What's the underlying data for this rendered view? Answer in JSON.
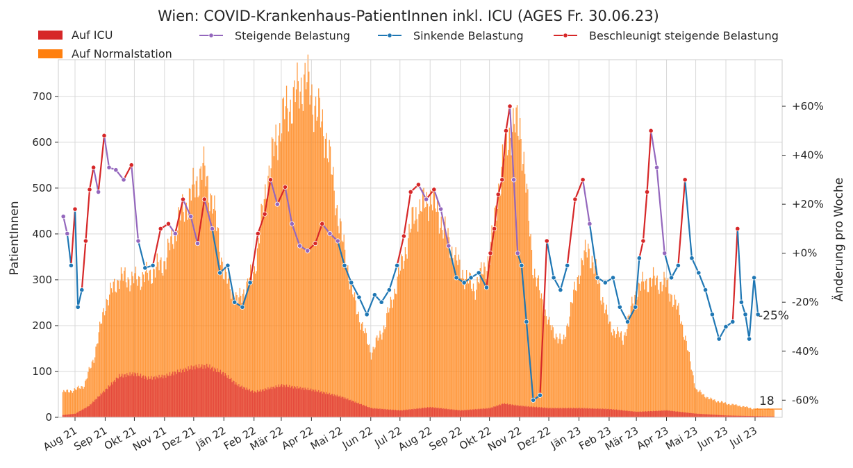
{
  "chart_data": {
    "type": "bar",
    "title": "Wien: COVID-Krankenhaus-PatientInnen inkl. ICU (AGES Fr. 30.06.23)",
    "ylabel": "PatientInnen",
    "y2label": "Änderung pro Woche",
    "ylim": [
      0,
      780
    ],
    "y2lim": [
      -67,
      79
    ],
    "yticks": [
      0,
      100,
      200,
      300,
      400,
      500,
      600,
      700
    ],
    "y2ticks": [
      {
        "value": 60,
        "label": "+60%"
      },
      {
        "value": 40,
        "label": "+40%"
      },
      {
        "value": 20,
        "label": "+20%"
      },
      {
        "value": 0,
        "label": "+0%"
      },
      {
        "value": -20,
        "label": "-20%"
      },
      {
        "value": -40,
        "label": "-40%"
      },
      {
        "value": -60,
        "label": "-60%"
      }
    ],
    "xticks": [
      "Aug 21",
      "Sep 21",
      "Okt 21",
      "Nov 21",
      "Dez 21",
      "Jän 22",
      "Feb 22",
      "Mär 22",
      "Apr 22",
      "Mai 22",
      "Jun 22",
      "Jul 22",
      "Aug 22",
      "Sep 22",
      "Okt 22",
      "Nov 22",
      "Dez 22",
      "Jän 23",
      "Feb 23",
      "Mär 23",
      "Apr 23",
      "Mai 23",
      "Jun 23",
      "Jul 23"
    ],
    "grid": true,
    "legend_position": "top",
    "legend": {
      "bars": [
        {
          "name": "Auf ICU",
          "color": "#d62728"
        },
        {
          "name": "Auf Normalstation",
          "color": "#ff7f0e"
        }
      ],
      "lines": [
        {
          "name": "Steigende Belastung",
          "color": "#9467bd"
        },
        {
          "name": "Sinkende Belastung",
          "color": "#1f77b4"
        },
        {
          "name": "Beschleunigt steigende Belastung",
          "color": "#d62728"
        }
      ]
    },
    "annotations": [
      {
        "text": "-25%",
        "axis": "y2",
        "value": -25
      },
      {
        "text": "18",
        "axis": "y",
        "value": 18
      }
    ],
    "total_series": {
      "name": "PatientInnen gesamt",
      "x": [
        "2021-07-20",
        "2021-08-01",
        "2021-08-10",
        "2021-08-20",
        "2021-09-01",
        "2021-09-15",
        "2021-10-01",
        "2021-10-15",
        "2021-11-01",
        "2021-11-15",
        "2021-12-01",
        "2021-12-10",
        "2021-12-20",
        "2022-01-01",
        "2022-01-15",
        "2022-02-01",
        "2022-02-15",
        "2022-03-01",
        "2022-03-15",
        "2022-03-25",
        "2022-04-01",
        "2022-04-15",
        "2022-05-01",
        "2022-05-15",
        "2022-06-01",
        "2022-06-15",
        "2022-07-01",
        "2022-07-15",
        "2022-08-01",
        "2022-08-10",
        "2022-08-20",
        "2022-09-01",
        "2022-09-15",
        "2022-10-01",
        "2022-10-10",
        "2022-10-20",
        "2022-11-01",
        "2022-11-15",
        "2022-12-01",
        "2022-12-15",
        "2023-01-01",
        "2023-01-10",
        "2023-01-20",
        "2023-02-01",
        "2023-02-15",
        "2023-03-01",
        "2023-03-15",
        "2023-04-01",
        "2023-04-15",
        "2023-05-01",
        "2023-05-15",
        "2023-06-01",
        "2023-06-15",
        "2023-07-01",
        "2023-07-15"
      ],
      "values": [
        55,
        60,
        70,
        130,
        250,
        305,
        300,
        310,
        340,
        430,
        500,
        545,
        470,
        310,
        250,
        320,
        530,
        650,
        700,
        740,
        700,
        620,
        400,
        250,
        140,
        200,
        320,
        440,
        480,
        440,
        380,
        320,
        280,
        350,
        500,
        620,
        640,
        320,
        200,
        160,
        320,
        370,
        300,
        200,
        170,
        280,
        300,
        290,
        220,
        60,
        40,
        30,
        25,
        18,
        18
      ]
    },
    "icu_series": {
      "name": "Auf ICU",
      "x": [
        "2021-07-20",
        "2021-08-01",
        "2021-08-15",
        "2021-09-01",
        "2021-09-15",
        "2021-10-01",
        "2021-10-15",
        "2021-11-01",
        "2021-11-15",
        "2021-12-01",
        "2021-12-15",
        "2022-01-01",
        "2022-01-15",
        "2022-02-01",
        "2022-03-01",
        "2022-04-01",
        "2022-05-01",
        "2022-06-01",
        "2022-07-01",
        "2022-08-01",
        "2022-09-01",
        "2022-10-01",
        "2022-10-15",
        "2022-11-01",
        "2022-12-01",
        "2023-01-01",
        "2023-02-01",
        "2023-03-01",
        "2023-04-01",
        "2023-05-01",
        "2023-06-01",
        "2023-07-15"
      ],
      "values": [
        5,
        8,
        25,
        60,
        90,
        95,
        85,
        90,
        100,
        110,
        112,
        95,
        70,
        55,
        70,
        60,
        45,
        20,
        15,
        22,
        15,
        20,
        30,
        25,
        20,
        20,
        18,
        12,
        15,
        8,
        4,
        2
      ]
    },
    "change_series": {
      "name": "Änderung pro Woche",
      "x": [
        "2021-07-20",
        "2021-07-24",
        "2021-07-28",
        "2021-08-01",
        "2021-08-04",
        "2021-08-08",
        "2021-08-12",
        "2021-08-16",
        "2021-08-20",
        "2021-08-25",
        "2021-08-31",
        "2021-09-05",
        "2021-09-12",
        "2021-09-20",
        "2021-09-28",
        "2021-10-05",
        "2021-10-12",
        "2021-10-20",
        "2021-10-28",
        "2021-11-05",
        "2021-11-12",
        "2021-11-20",
        "2021-11-28",
        "2021-12-05",
        "2021-12-12",
        "2021-12-20",
        "2021-12-28",
        "2022-01-05",
        "2022-01-12",
        "2022-01-20",
        "2022-01-28",
        "2022-02-05",
        "2022-02-12",
        "2022-02-18",
        "2022-02-25",
        "2022-03-05",
        "2022-03-12",
        "2022-03-20",
        "2022-03-28",
        "2022-04-05",
        "2022-04-12",
        "2022-04-20",
        "2022-04-28",
        "2022-05-05",
        "2022-05-12",
        "2022-05-20",
        "2022-05-28",
        "2022-06-05",
        "2022-06-12",
        "2022-06-20",
        "2022-06-28",
        "2022-07-05",
        "2022-07-12",
        "2022-07-20",
        "2022-07-28",
        "2022-08-05",
        "2022-08-12",
        "2022-08-20",
        "2022-08-28",
        "2022-09-05",
        "2022-09-12",
        "2022-09-20",
        "2022-09-28",
        "2022-10-02",
        "2022-10-06",
        "2022-10-10",
        "2022-10-14",
        "2022-10-18",
        "2022-10-22",
        "2022-10-26",
        "2022-10-30",
        "2022-11-03",
        "2022-11-08",
        "2022-11-15",
        "2022-11-22",
        "2022-11-29",
        "2022-12-06",
        "2022-12-13",
        "2022-12-20",
        "2022-12-28",
        "2023-01-05",
        "2023-01-12",
        "2023-01-20",
        "2023-01-28",
        "2023-02-05",
        "2023-02-12",
        "2023-02-20",
        "2023-02-28",
        "2023-03-04",
        "2023-03-08",
        "2023-03-12",
        "2023-03-16",
        "2023-03-22",
        "2023-03-30",
        "2023-04-06",
        "2023-04-13",
        "2023-04-20",
        "2023-04-27",
        "2023-05-04",
        "2023-05-11",
        "2023-05-18",
        "2023-05-25",
        "2023-06-01",
        "2023-06-08",
        "2023-06-13",
        "2023-06-17",
        "2023-06-21",
        "2023-06-25",
        "2023-06-30",
        "2023-07-04"
      ],
      "values": [
        15,
        8,
        -5,
        18,
        -22,
        -15,
        5,
        26,
        35,
        25,
        48,
        35,
        34,
        30,
        36,
        5,
        -6,
        -5,
        10,
        12,
        8,
        22,
        15,
        4,
        22,
        10,
        -8,
        -5,
        -20,
        -22,
        -12,
        8,
        16,
        30,
        20,
        27,
        12,
        3,
        1,
        4,
        12,
        8,
        5,
        -5,
        -12,
        -18,
        -25,
        -17,
        -20,
        -15,
        -5,
        7,
        25,
        28,
        22,
        26,
        18,
        3,
        -10,
        -12,
        -10,
        -8,
        -14,
        0,
        10,
        24,
        30,
        50,
        60,
        30,
        0,
        -5,
        -28,
        -60,
        -58,
        5,
        -10,
        -15,
        -5,
        22,
        30,
        12,
        -10,
        -12,
        -10,
        -22,
        -28,
        -22,
        -2,
        5,
        25,
        50,
        35,
        0,
        -10,
        -5,
        30,
        -2,
        -8,
        -15,
        -25,
        -35,
        -30,
        -28,
        10,
        -20,
        -25,
        -35,
        -10,
        -25
      ]
    }
  }
}
